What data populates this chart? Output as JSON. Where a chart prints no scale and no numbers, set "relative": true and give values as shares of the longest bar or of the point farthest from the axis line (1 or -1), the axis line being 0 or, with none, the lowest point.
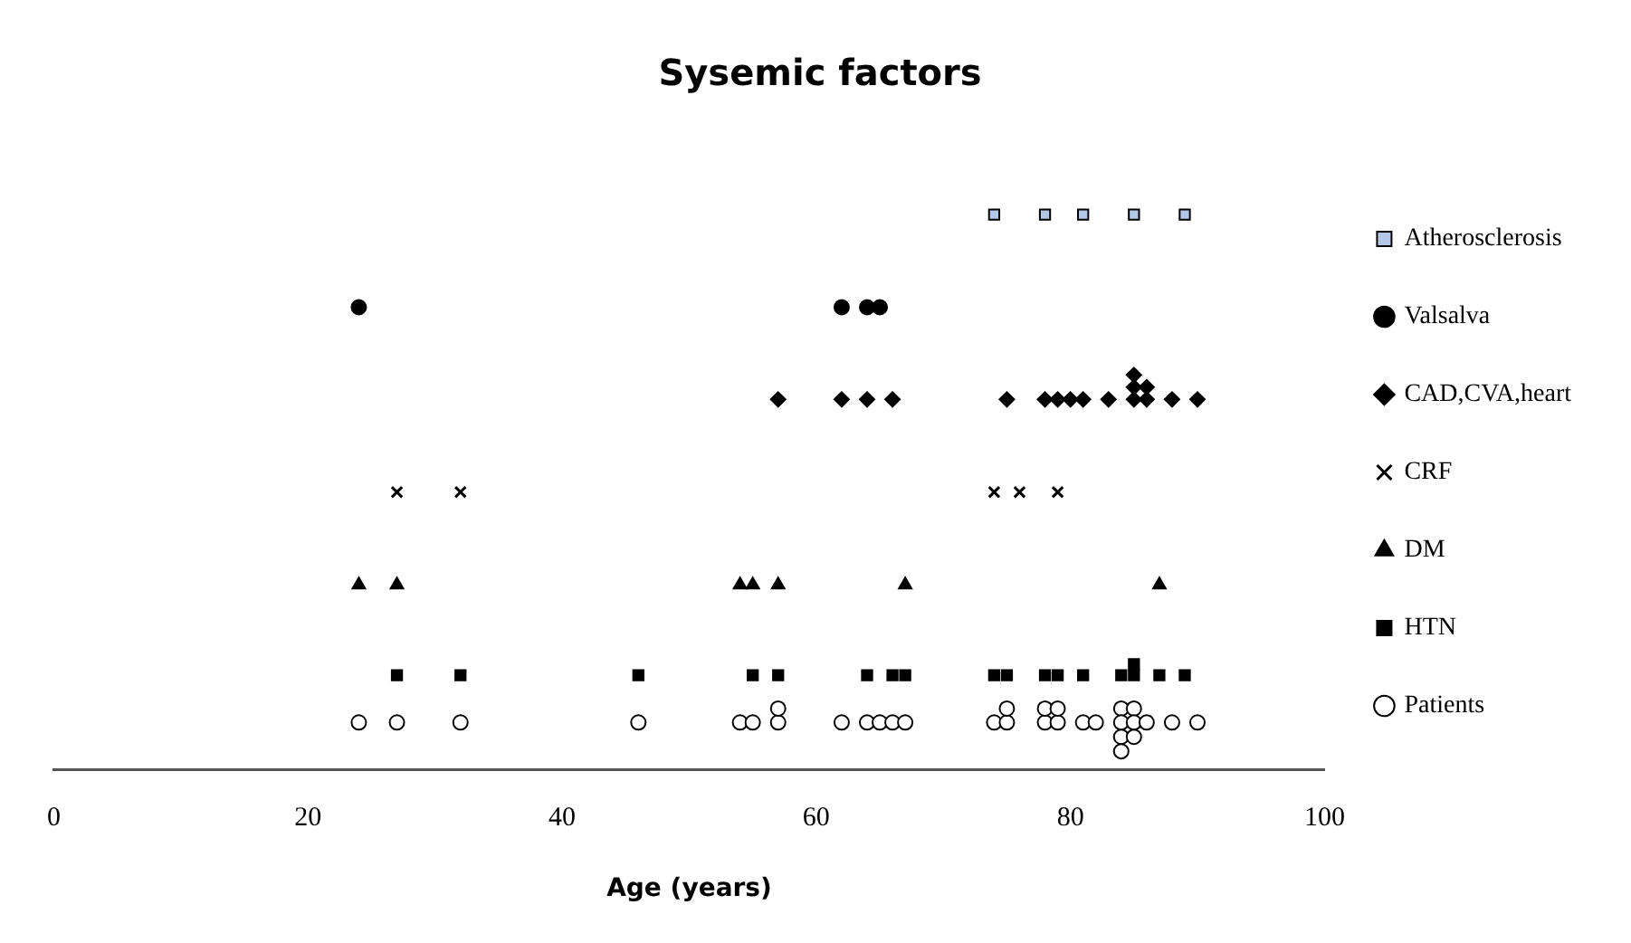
{
  "chart_data": {
    "type": "scatter",
    "title": "Sysemic factors",
    "xlabel": "Age (years)",
    "relative": true,
    "xlim": [
      0,
      100
    ],
    "xticks": [
      0,
      20,
      40,
      60,
      80,
      100
    ],
    "grid": false,
    "legend": "right",
    "series": [
      {
        "name": "Atherosclerosis",
        "color": "#b4c7e7",
        "marker": "square",
        "x": [
          74,
          78,
          81,
          85,
          89
        ],
        "values": [
          1,
          1,
          1,
          1,
          1
        ]
      },
      {
        "name": "Valsalva",
        "color": "#000000",
        "marker": "circle",
        "x": [
          24,
          62,
          64,
          65
        ],
        "values": [
          0.833,
          0.833,
          0.833,
          0.833
        ]
      },
      {
        "name": "CAD,CVA,heart",
        "color": "#000000",
        "marker": "diamond",
        "x": [
          57,
          62,
          64,
          66,
          75,
          78,
          79,
          80,
          81,
          83,
          85,
          85,
          85,
          86,
          86,
          88,
          90
        ],
        "values": [
          0.667,
          0.667,
          0.667,
          0.667,
          0.667,
          0.667,
          0.667,
          0.667,
          0.667,
          0.667,
          0.667,
          0.689,
          0.711,
          0.667,
          0.689,
          0.667,
          0.667
        ]
      },
      {
        "name": "CRF",
        "color": "#000000",
        "marker": "cross",
        "x": [
          27,
          32,
          74,
          76,
          79
        ],
        "values": [
          0.5,
          0.5,
          0.5,
          0.5,
          0.5
        ]
      },
      {
        "name": "DM",
        "color": "#000000",
        "marker": "triangle",
        "x": [
          24,
          27,
          54,
          55,
          57,
          67,
          87
        ],
        "values": [
          0.333,
          0.333,
          0.333,
          0.333,
          0.333,
          0.333,
          0.333
        ]
      },
      {
        "name": "HTN",
        "color": "#000000",
        "marker": "square",
        "x": [
          27,
          32,
          46,
          55,
          57,
          64,
          66,
          67,
          74,
          75,
          78,
          79,
          81,
          84,
          85,
          85,
          87,
          89
        ],
        "values": [
          0.17,
          0.17,
          0.17,
          0.17,
          0.17,
          0.17,
          0.17,
          0.17,
          0.17,
          0.17,
          0.17,
          0.17,
          0.17,
          0.17,
          0.17,
          0.19,
          0.17,
          0.17
        ]
      },
      {
        "name": "Patients",
        "color": "#ffffff",
        "marker": "circle",
        "x": [
          24,
          27,
          32,
          46,
          54,
          55,
          57,
          57,
          62,
          64,
          65,
          66,
          67,
          74,
          75,
          75,
          78,
          78,
          79,
          79,
          81,
          82,
          84,
          84,
          84,
          84,
          85,
          85,
          85,
          86,
          88,
          90
        ],
        "values": [
          0.085,
          0.085,
          0.085,
          0.085,
          0.085,
          0.085,
          0.085,
          0.11,
          0.085,
          0.085,
          0.085,
          0.085,
          0.085,
          0.085,
          0.085,
          0.11,
          0.085,
          0.11,
          0.085,
          0.11,
          0.085,
          0.085,
          0.11,
          0.085,
          0.059,
          0.033,
          0.11,
          0.085,
          0.059,
          0.085,
          0.085,
          0.085
        ]
      }
    ]
  }
}
